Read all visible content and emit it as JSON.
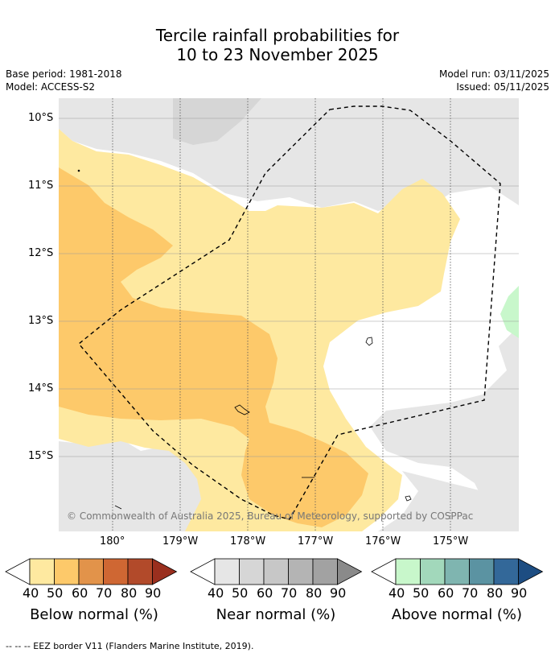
{
  "title_line1": "Tercile rainfall probabilities for",
  "title_line2": "10 to 23 November 2025",
  "base_period": "Base period: 1981-2018",
  "model": "Model: ACCESS-S2",
  "model_run": "Model run: 03/11/2025",
  "issued": "Issued: 05/11/2025",
  "copyright": "© Commonwealth of Australia 2025, Bureau of Meteorology, supported by COSPPac",
  "lat_labels": [
    "10°S",
    "11°S",
    "12°S",
    "13°S",
    "14°S",
    "15°S"
  ],
  "lon_labels": [
    "180°",
    "179°W",
    "178°W",
    "177°W",
    "176°W",
    "175°W"
  ],
  "colorbars": [
    {
      "label": "Below normal (%)",
      "ticks": [
        "40",
        "50",
        "60",
        "70",
        "80",
        "90"
      ],
      "colors": [
        "#fee9a0",
        "#fdc96a",
        "#e2934a",
        "#cf6733",
        "#b24a2a",
        "#9a2f1e"
      ]
    },
    {
      "label": "Near normal (%)",
      "ticks": [
        "40",
        "50",
        "60",
        "70",
        "80",
        "90"
      ],
      "colors": [
        "#e6e6e6",
        "#d6d6d6",
        "#c7c7c7",
        "#b4b4b4",
        "#a2a2a2",
        "#8a8a8a"
      ]
    },
    {
      "label": "Above normal (%)",
      "ticks": [
        "40",
        "50",
        "60",
        "70",
        "80",
        "90"
      ],
      "colors": [
        "#c8f7cb",
        "#a2d8bb",
        "#7fb5b0",
        "#5b93a2",
        "#336899",
        "#1d4d82"
      ]
    }
  ],
  "footer": "--  --  -- EEZ border V11 (Flanders Marine Institute, 2019)."
}
